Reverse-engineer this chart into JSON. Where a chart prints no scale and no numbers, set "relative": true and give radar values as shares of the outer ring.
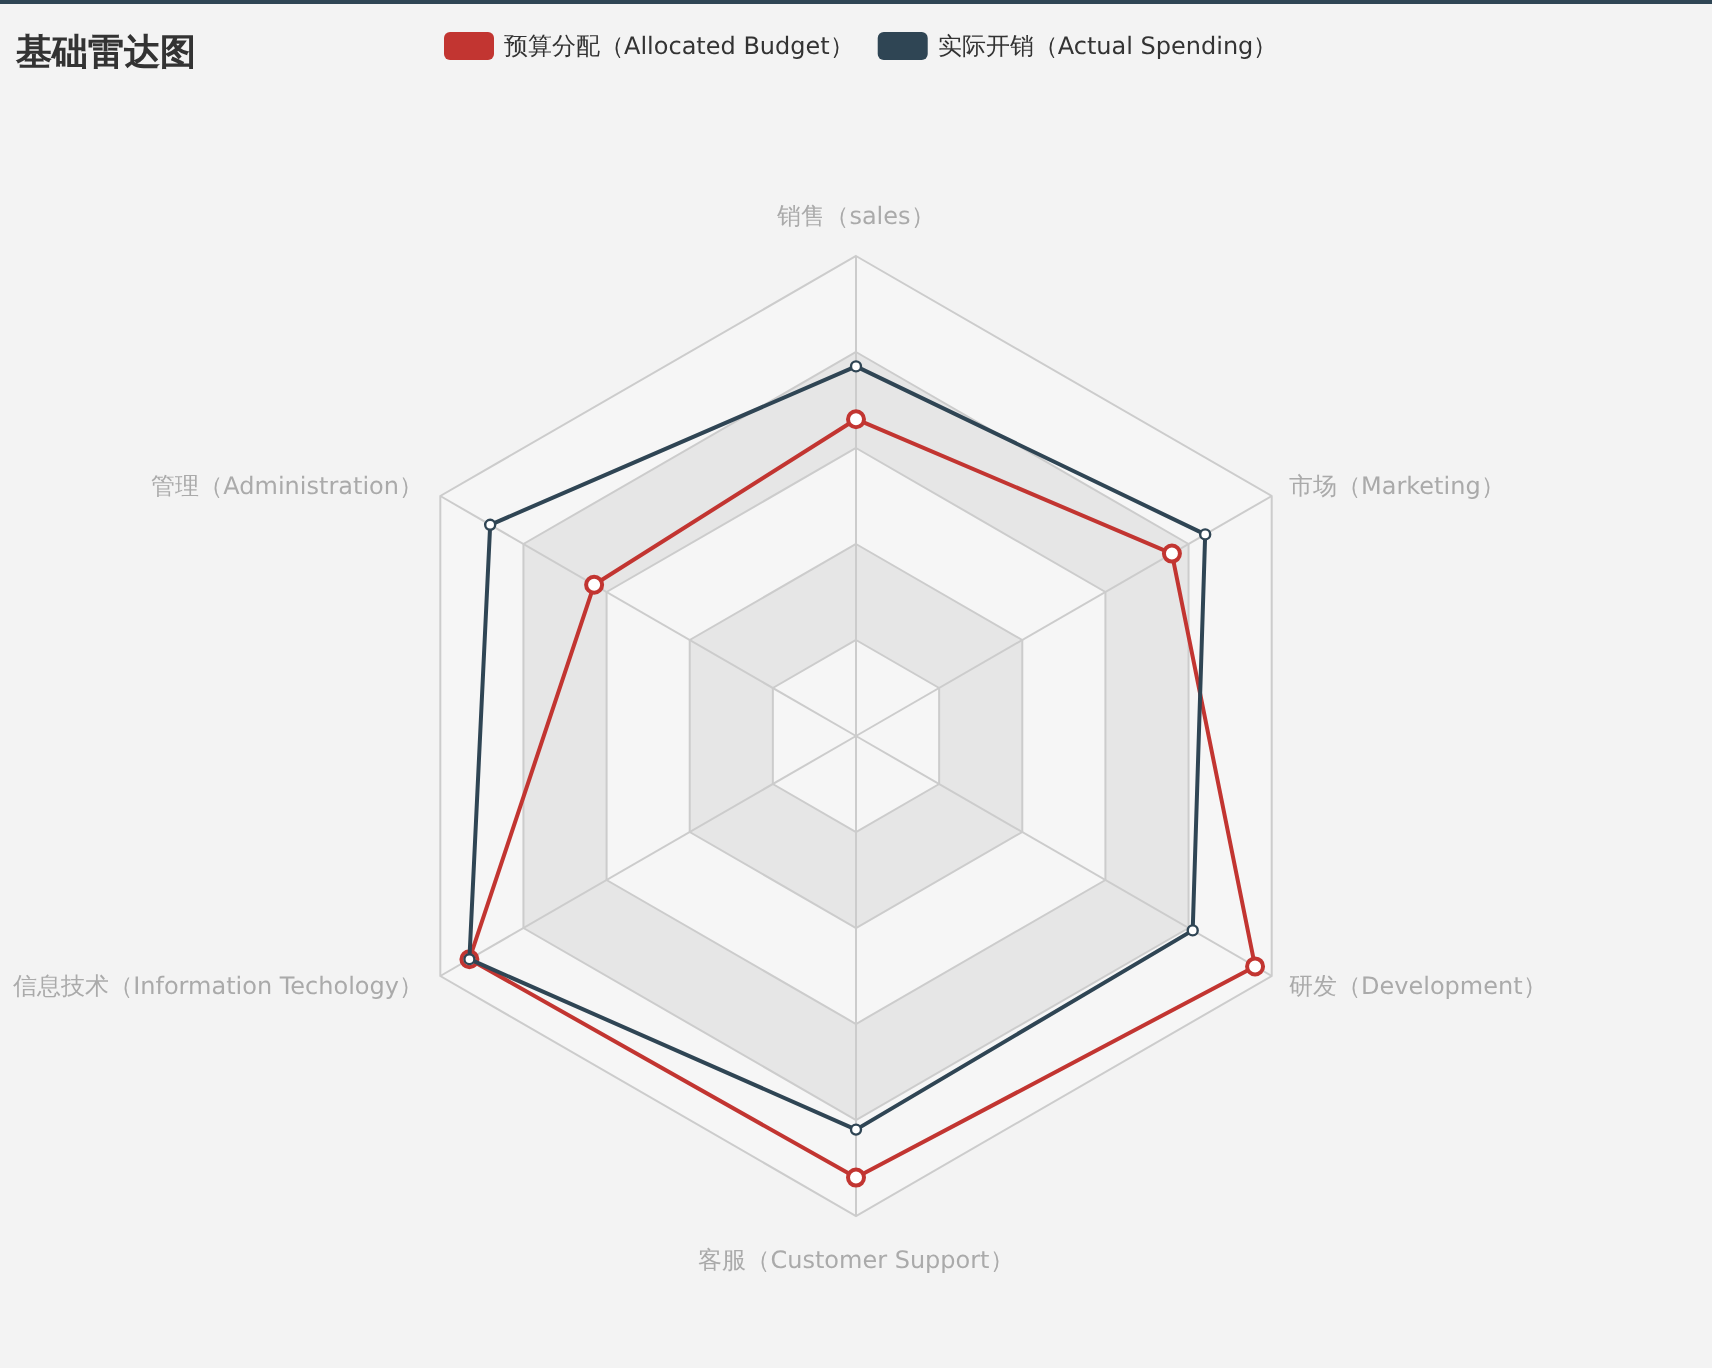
{
  "chart_data": {
    "type": "radar",
    "title": "基础雷达图",
    "categories": [
      "销售（sales）",
      "市场（Marketing）",
      "研发（Development）",
      "客服（Customer Support）",
      "信息技术（Information Techology）",
      "管理（Administration）"
    ],
    "relative": true,
    "legend": "top",
    "marker": "circle",
    "line_style": "solid",
    "grid": true,
    "series": [
      {
        "name": "预算分配（Allocated Budget）",
        "color": "#c23531",
        "values": [
          0.66,
          0.76,
          0.96,
          0.92,
          0.93,
          0.63
        ]
      },
      {
        "name": "实际开销（Actual Spending）",
        "color": "#2f4554",
        "values": [
          0.77,
          0.84,
          0.81,
          0.82,
          0.93,
          0.88
        ]
      }
    ]
  }
}
